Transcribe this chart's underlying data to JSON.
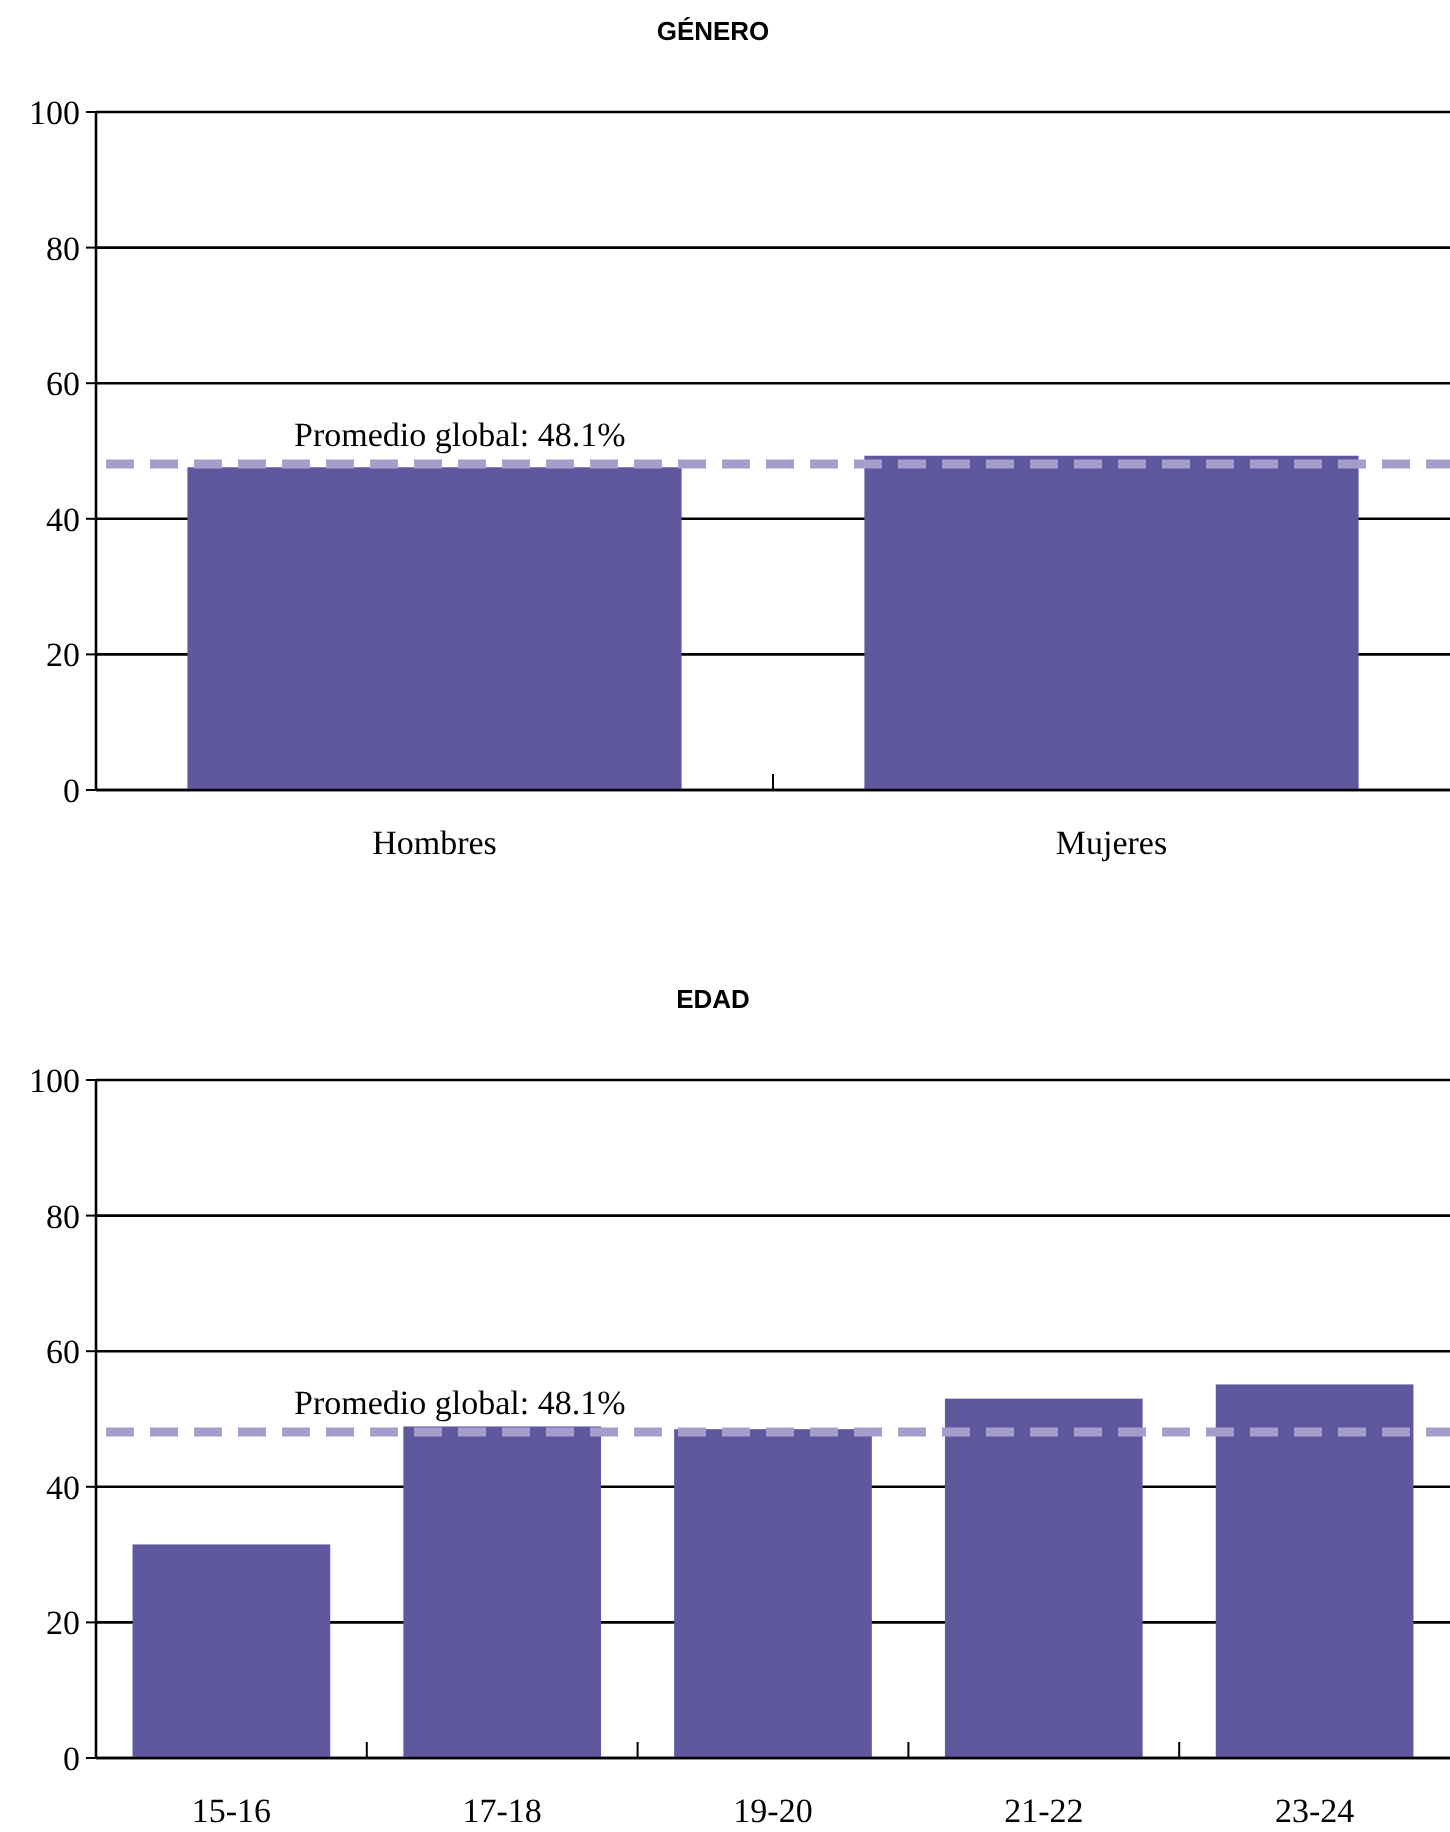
{
  "chart_data": [
    {
      "type": "bar",
      "title": "GÉNERO",
      "categories": [
        "Hombres",
        "Mujeres"
      ],
      "values": [
        47.6,
        49.3
      ],
      "color": "#5f589e",
      "ylim": [
        0,
        100
      ],
      "yticks": [
        0,
        20,
        40,
        60,
        80,
        100
      ],
      "grid": "y",
      "ref_lines": [
        {
          "axis": "y",
          "value": 48.1,
          "label": "Promedio global: 48.1%",
          "color": "#a59dcc",
          "line_style": "dashed"
        }
      ]
    },
    {
      "type": "bar",
      "title": "EDAD",
      "categories": [
        "15-16",
        "17-18",
        "19-20",
        "21-22",
        "23-24"
      ],
      "values": [
        31.5,
        48.9,
        48.5,
        53.0,
        55.1
      ],
      "color": "#5f589e",
      "ylim": [
        0,
        100
      ],
      "yticks": [
        0,
        20,
        40,
        60,
        80,
        100
      ],
      "grid": "y",
      "ref_lines": [
        {
          "axis": "y",
          "value": 48.1,
          "label": "Promedio global: 48.1%",
          "color": "#a59dcc",
          "line_style": "dashed"
        }
      ]
    }
  ]
}
